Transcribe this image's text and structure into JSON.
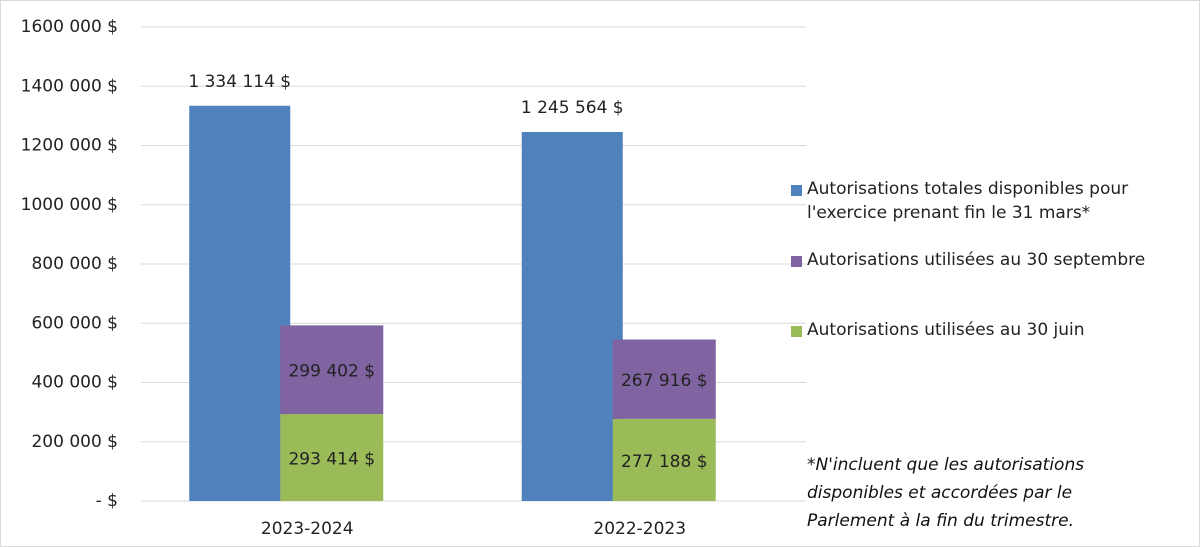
{
  "chart_data": {
    "type": "bar",
    "categories": [
      "2023-2024",
      "2022-2023"
    ],
    "series": [
      {
        "name": "Autorisations totales disponibles pour l'exercice prenant fin le 31 mars*",
        "color": "#4f81bd",
        "values": [
          1334114,
          1245564
        ],
        "value_labels": [
          "1 334 114 $",
          "1 245 564 $"
        ]
      },
      {
        "name": "Autorisations utilisées au 30 septembre",
        "color": "#8064a2",
        "stacked": true,
        "values": [
          299402,
          267916
        ],
        "value_labels": [
          "299 402  $",
          "267 916  $"
        ]
      },
      {
        "name": "Autorisations utilisées au 30 juin",
        "color": "#9bbb59",
        "stacked": true,
        "values": [
          293414,
          277188
        ],
        "value_labels": [
          "293 414  $",
          "277 188  $"
        ]
      }
    ],
    "ylim": [
      0,
      1600000
    ],
    "yticks": [
      {
        "value": 0,
        "label": "-   $"
      },
      {
        "value": 200000,
        "label": "200 000  $"
      },
      {
        "value": 400000,
        "label": "400 000  $"
      },
      {
        "value": 600000,
        "label": "600 000  $"
      },
      {
        "value": 800000,
        "label": "800 000  $"
      },
      {
        "value": 1000000,
        "label": "1000 000  $"
      },
      {
        "value": 1200000,
        "label": "1200 000  $"
      },
      {
        "value": 1400000,
        "label": "1400 000  $"
      },
      {
        "value": 1600000,
        "label": "1600 000  $"
      }
    ],
    "grid": true,
    "legend": "right",
    "note": [
      "*N'incluent que les autorisations",
      "disponibles et accordées par le",
      "Parlement à la fin du trimestre."
    ]
  }
}
